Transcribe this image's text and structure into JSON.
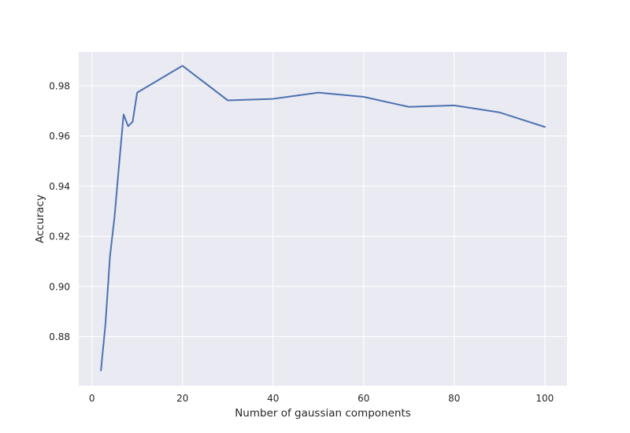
{
  "chart_data": {
    "type": "line",
    "title": "",
    "xlabel": "Number of gaussian components",
    "ylabel": "Accuracy",
    "xlim": [
      -2.9,
      104.9
    ],
    "ylim": [
      0.8604,
      0.9935
    ],
    "x_ticks": [
      0,
      20,
      40,
      60,
      80,
      100
    ],
    "y_ticks": [
      0.88,
      0.9,
      0.92,
      0.94,
      0.96,
      0.98
    ],
    "x_tick_labels": [
      "0",
      "20",
      "40",
      "60",
      "80",
      "100"
    ],
    "y_tick_labels": [
      "0.88",
      "0.90",
      "0.92",
      "0.94",
      "0.96",
      "0.98"
    ],
    "grid": true,
    "legend": "none",
    "series": [
      {
        "color": "#4c72b0",
        "x": [
          2,
          3,
          4,
          5,
          6,
          7,
          8,
          9,
          10,
          20,
          30,
          40,
          50,
          60,
          70,
          80,
          90,
          100
        ],
        "y": [
          0.8665,
          0.8851,
          0.9121,
          0.9277,
          0.9485,
          0.9686,
          0.9639,
          0.9657,
          0.9773,
          0.988,
          0.9742,
          0.9748,
          0.9773,
          0.9756,
          0.9716,
          0.9722,
          0.9694,
          0.9636
        ]
      }
    ],
    "style": {
      "plot_background": "#eaeaf2",
      "grid_color": "#ffffff"
    }
  }
}
